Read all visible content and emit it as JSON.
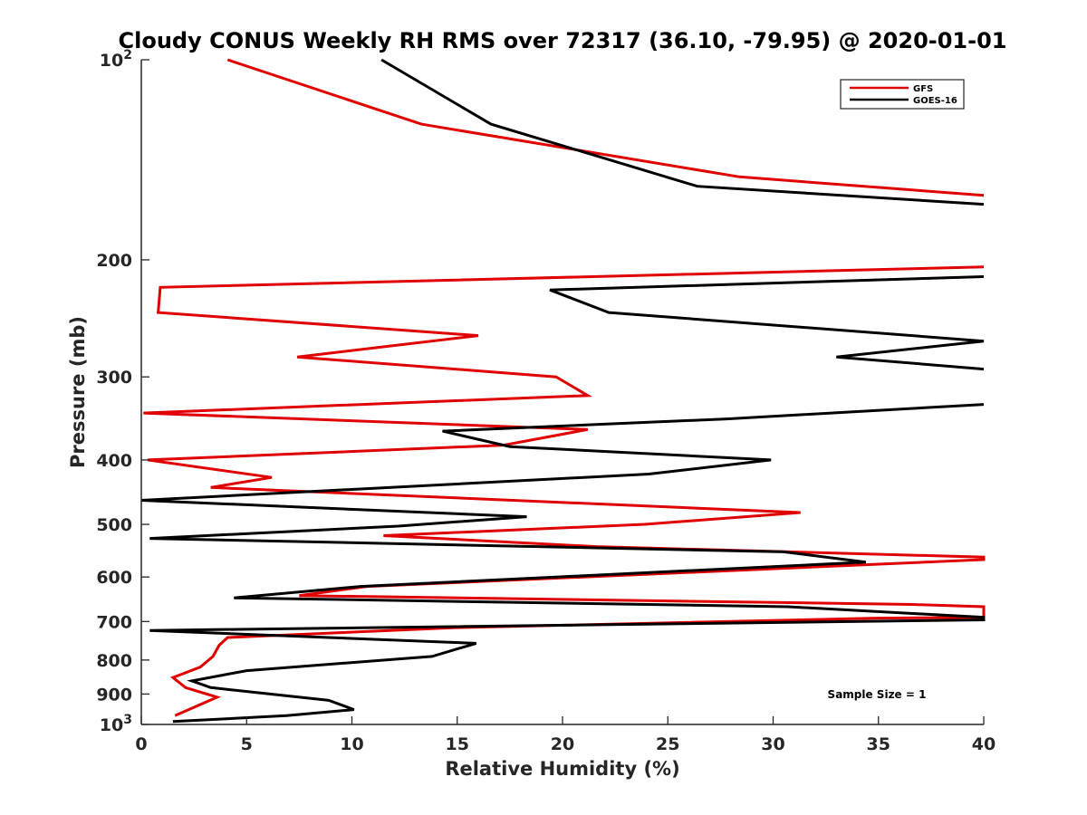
{
  "chart_data": {
    "type": "line",
    "title": "Cloudy CONUS Weekly RH RMS over 72317 (36.10, -79.95) @ 2020-01-01",
    "xlabel": "Relative Humidity (%)",
    "ylabel": "Pressure (mb)",
    "xlim": [
      0,
      40
    ],
    "ylim": [
      100,
      1000
    ],
    "yscale": "log",
    "y_reversed": true,
    "grid": false,
    "legend_position": "top-right",
    "x_ticks": [
      "0",
      "5",
      "10",
      "15",
      "20",
      "25",
      "30",
      "35",
      "40"
    ],
    "y_ticks": [
      {
        "value": 100,
        "base": "10",
        "exp": "2"
      },
      {
        "value": 200,
        "label": "200"
      },
      {
        "value": 300,
        "label": "300"
      },
      {
        "value": 400,
        "label": "400"
      },
      {
        "value": 500,
        "label": "500"
      },
      {
        "value": 600,
        "label": "600"
      },
      {
        "value": 700,
        "label": "700"
      },
      {
        "value": 800,
        "label": "800"
      },
      {
        "value": 900,
        "label": "900"
      },
      {
        "value": 1000,
        "base": "10",
        "exp": "3"
      }
    ],
    "annotation": "Sample Size = 1",
    "series": [
      {
        "name": "GFS",
        "color": "#e00000",
        "points": [
          [
            4.1,
            100
          ],
          [
            13.3,
            125
          ],
          [
            28.4,
            150
          ],
          [
            40,
            160
          ],
          [
            null,
            null
          ],
          [
            40,
            205
          ],
          [
            0.9,
            220
          ],
          [
            0.8,
            240
          ],
          [
            16.0,
            260
          ],
          [
            7.4,
            280
          ],
          [
            19.7,
            300
          ],
          [
            21.2,
            320
          ],
          [
            0.1,
            340
          ],
          [
            21.2,
            360
          ],
          [
            17.2,
            380
          ],
          [
            0.3,
            400
          ],
          [
            6.2,
            425
          ],
          [
            3.3,
            440
          ],
          [
            31.3,
            480
          ],
          [
            23.9,
            500
          ],
          [
            11.5,
            520
          ],
          [
            21.6,
            540
          ],
          [
            40,
            560
          ],
          [
            40,
            565
          ],
          [
            10.7,
            620
          ],
          [
            7.5,
            640
          ],
          [
            36.6,
            660
          ],
          [
            40,
            665
          ],
          [
            40,
            690
          ],
          [
            34.9,
            692
          ],
          [
            14.9,
            715
          ],
          [
            4.1,
            740
          ],
          [
            3.7,
            760
          ],
          [
            3.4,
            790
          ],
          [
            2.8,
            820
          ],
          [
            1.5,
            850
          ],
          [
            2.1,
            880
          ],
          [
            3.6,
            910
          ],
          [
            1.6,
            970
          ]
        ]
      },
      {
        "name": "GOES-16",
        "color": "#000000",
        "points": [
          [
            11.4,
            100
          ],
          [
            16.6,
            125
          ],
          [
            26.4,
            155
          ],
          [
            40,
            165
          ],
          [
            null,
            null
          ],
          [
            40,
            212
          ],
          [
            19.4,
            222
          ],
          [
            22.2,
            240
          ],
          [
            40,
            265
          ],
          [
            33.0,
            280
          ],
          [
            40,
            292
          ],
          [
            null,
            null
          ],
          [
            40,
            330
          ],
          [
            27.8,
            347
          ],
          [
            14.3,
            362
          ],
          [
            17.5,
            382
          ],
          [
            29.9,
            400
          ],
          [
            24.1,
            420
          ],
          [
            0,
            460
          ],
          [
            18.3,
            487
          ],
          [
            12.2,
            503
          ],
          [
            0.4,
            525
          ],
          [
            30.5,
            550
          ],
          [
            34.4,
            570
          ],
          [
            10.4,
            620
          ],
          [
            4.4,
            645
          ],
          [
            30.7,
            665
          ],
          [
            40,
            690
          ],
          [
            40,
            696
          ],
          [
            0.4,
            722
          ],
          [
            15.9,
            755
          ],
          [
            13.8,
            790
          ],
          [
            5.0,
            830
          ],
          [
            2.4,
            860
          ],
          [
            3.3,
            880
          ],
          [
            8.9,
            920
          ],
          [
            10.1,
            950
          ],
          [
            6.9,
            970
          ],
          [
            1.5,
            990
          ]
        ]
      }
    ]
  }
}
